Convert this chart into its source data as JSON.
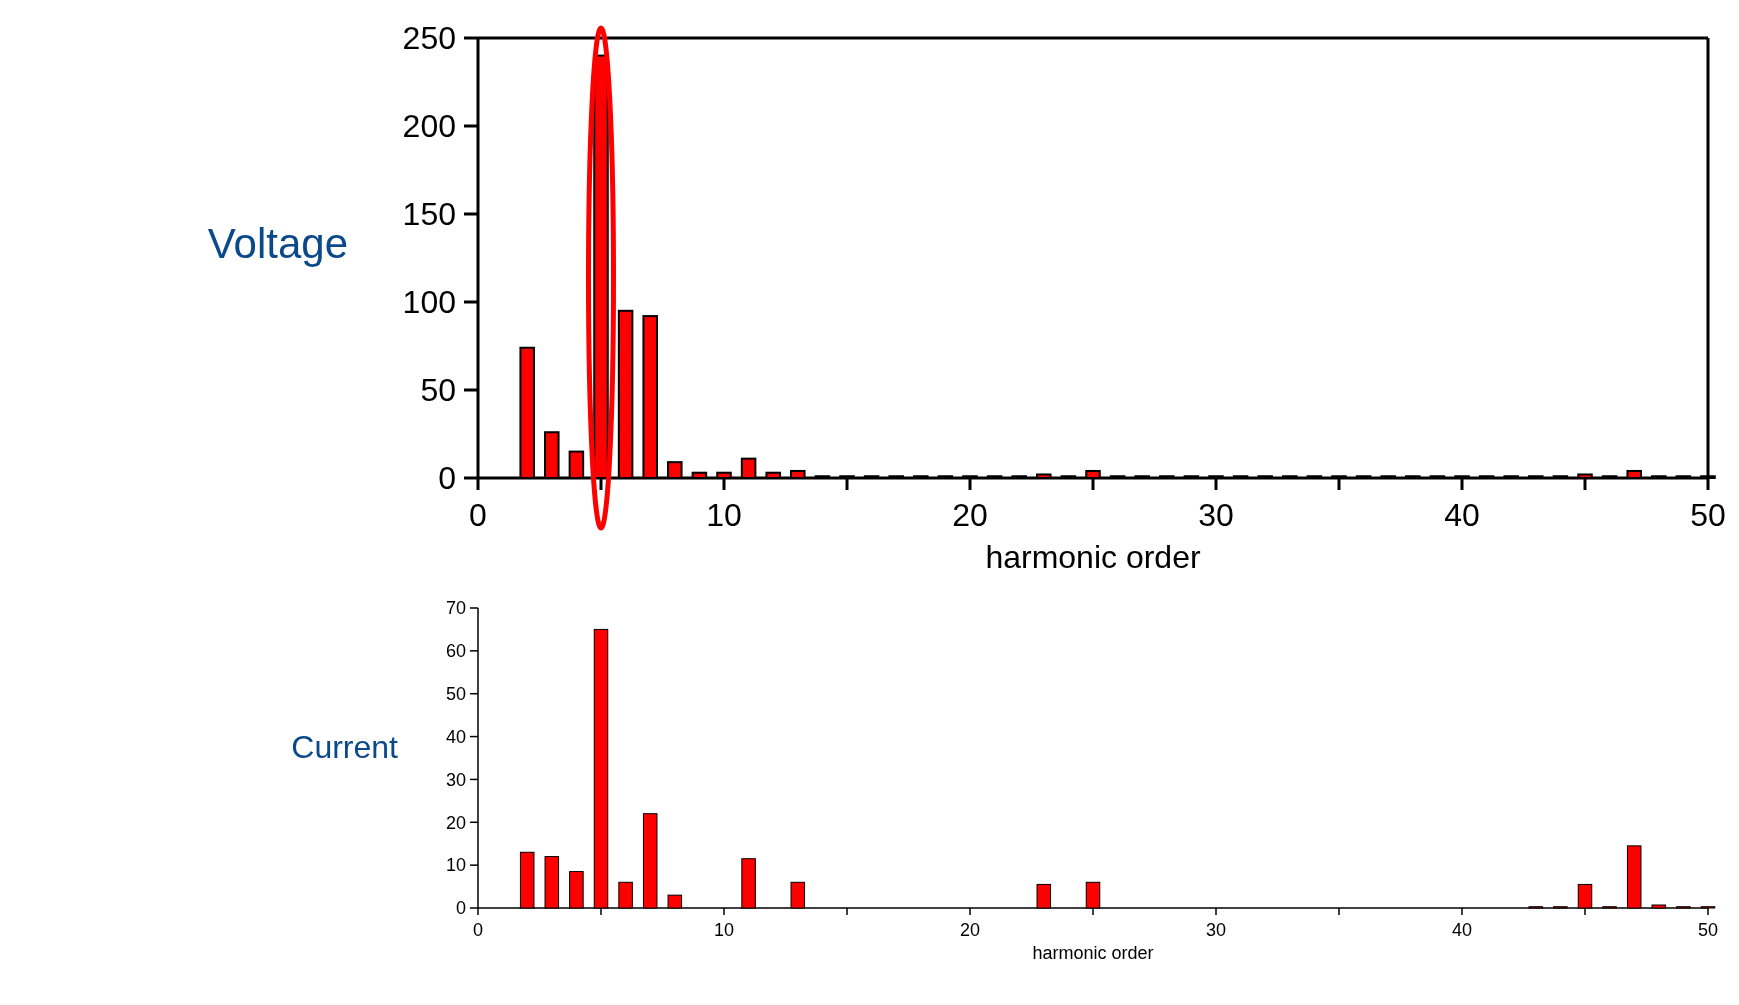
{
  "chart_data": [
    {
      "type": "bar",
      "title": "Voltage",
      "xlabel": "harmonic order",
      "x": [
        1,
        2,
        3,
        4,
        5,
        6,
        7,
        8,
        9,
        10,
        11,
        12,
        13,
        14,
        15,
        16,
        17,
        18,
        19,
        20,
        21,
        22,
        23,
        24,
        25,
        26,
        27,
        28,
        29,
        30,
        31,
        32,
        33,
        34,
        35,
        36,
        37,
        38,
        39,
        40,
        41,
        42,
        43,
        44,
        45,
        46,
        47,
        48,
        49,
        50
      ],
      "values": [
        0,
        74,
        26,
        15,
        240,
        95,
        92,
        9,
        3,
        3,
        11,
        3,
        4,
        1,
        1,
        1,
        1,
        1,
        1,
        1,
        1,
        1,
        2,
        1,
        4,
        1,
        1,
        1,
        1,
        1,
        1,
        1,
        1,
        1,
        1,
        1,
        1,
        1,
        1,
        1,
        1,
        1,
        1,
        1,
        2,
        1,
        4,
        1,
        1,
        1
      ],
      "color": "#ff0000",
      "xlim": [
        0,
        50
      ],
      "ylim": [
        0,
        250
      ],
      "xticks": [
        0,
        {
          "value": 5,
          "label": null
        },
        10,
        {
          "value": 15,
          "label": null
        },
        20,
        {
          "value": 25,
          "label": null
        },
        30,
        {
          "value": 35,
          "label": null
        },
        40,
        {
          "value": 45,
          "label": null
        },
        50
      ],
      "yticks": [
        0,
        50,
        100,
        150,
        200,
        250
      ],
      "grid": false
    },
    {
      "type": "bar",
      "title": "Current",
      "xlabel": "harmonic order",
      "x": [
        1,
        2,
        3,
        4,
        5,
        6,
        7,
        8,
        9,
        10,
        11,
        12,
        13,
        14,
        15,
        16,
        17,
        18,
        19,
        20,
        21,
        22,
        23,
        24,
        25,
        26,
        27,
        28,
        29,
        30,
        31,
        32,
        33,
        34,
        35,
        36,
        37,
        38,
        39,
        40,
        41,
        42,
        43,
        44,
        45,
        46,
        47,
        48,
        49,
        50
      ],
      "values": [
        0,
        13,
        12,
        8.5,
        65,
        6,
        22,
        3,
        0,
        0,
        11.5,
        0,
        6,
        0,
        0,
        0,
        0,
        0,
        0,
        0,
        0,
        0,
        5.5,
        0,
        6,
        0,
        0,
        0,
        0,
        0,
        0,
        0,
        0,
        0,
        0,
        0,
        0,
        0,
        0,
        0,
        0,
        0,
        0.3,
        0.3,
        5.5,
        0.3,
        14.5,
        0.7,
        0.3,
        0.3
      ],
      "color": "#ff0000",
      "xlim": [
        0,
        50
      ],
      "ylim": [
        0,
        70
      ],
      "xticks": [
        0,
        {
          "value": 5,
          "label": null
        },
        10,
        {
          "value": 15,
          "label": null
        },
        20,
        {
          "value": 25,
          "label": null
        },
        30,
        {
          "value": 35,
          "label": null
        },
        40,
        {
          "value": 45,
          "label": null
        },
        50
      ],
      "yticks": [
        0,
        10,
        20,
        30,
        40,
        50,
        60,
        70
      ],
      "grid": false
    }
  ]
}
